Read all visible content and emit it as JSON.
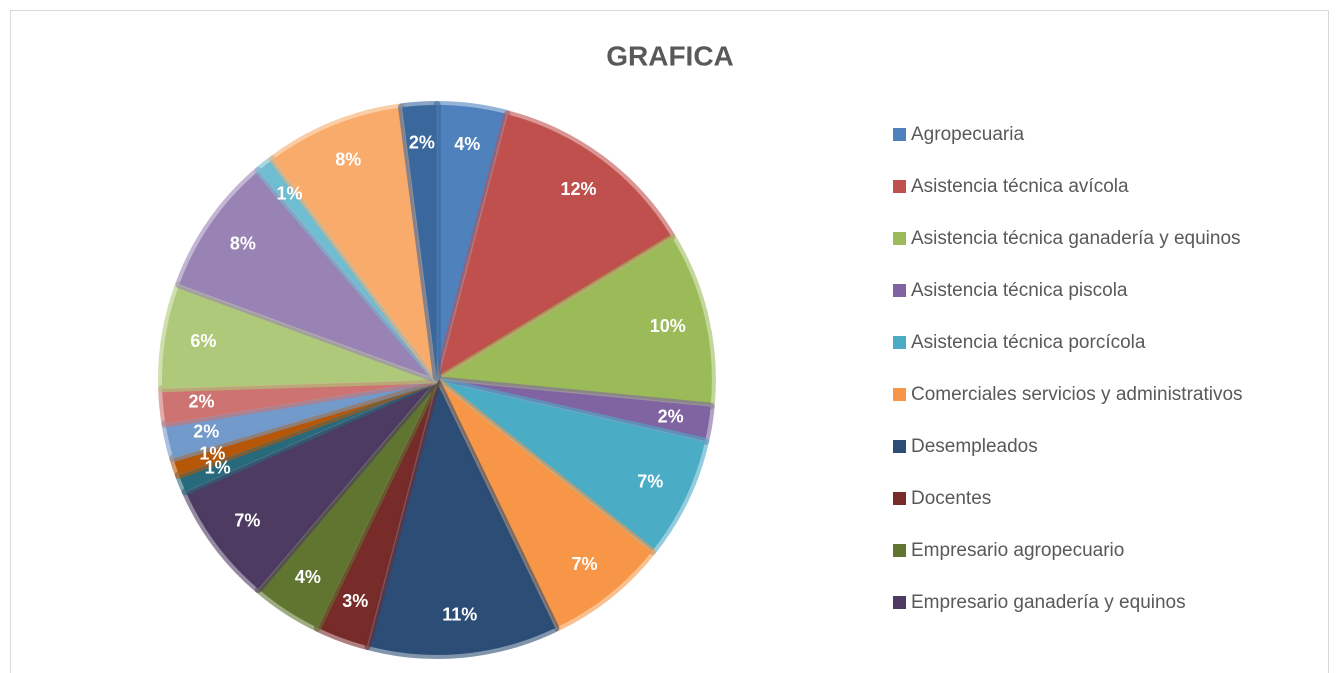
{
  "chart_data": {
    "type": "pie",
    "title": "GRAFICA",
    "categories": [
      "Agropecuaria",
      "Asistencia técnica avícola",
      "Asistencia técnica ganadería y equinos",
      "Asistencia técnica piscola",
      "Asistencia técnica porcícola",
      "Comerciales servicios y administrativos",
      "Desempleados",
      "Docentes",
      "Empresario agropecuario",
      "Empresario ganadería y equinos",
      null,
      null,
      null,
      null,
      null,
      null,
      null,
      null,
      null
    ],
    "values": [
      4,
      12,
      10,
      2,
      7,
      7,
      11,
      3,
      4,
      7,
      1,
      1,
      2,
      2,
      6,
      8,
      1,
      8,
      2
    ],
    "value_labels": [
      "4%",
      "12%",
      "10%",
      "2%",
      "7%",
      "7%",
      "11%",
      "3%",
      "4%",
      "7%",
      "1%",
      "1%",
      "2%",
      "2%",
      "6%",
      "8%",
      "1%",
      "8%",
      "2%"
    ],
    "colors": [
      "#4f81bd",
      "#c0504d",
      "#9bbb59",
      "#8064a2",
      "#4bacc6",
      "#f79646",
      "#2c4d75",
      "#772c2a",
      "#5f7530",
      "#4d3b62",
      "#276a7c",
      "#b65708",
      "#729aca",
      "#cd7371",
      "#afc97a",
      "#9983b5",
      "#6fbdd1",
      "#f9ab6b",
      "#3a679c"
    ],
    "legend": "right"
  }
}
